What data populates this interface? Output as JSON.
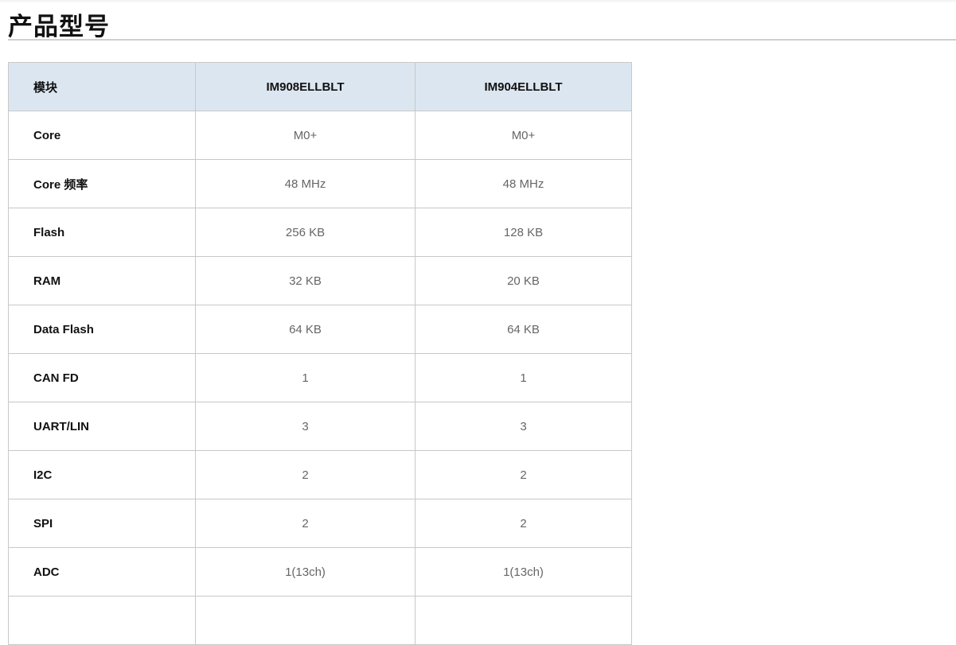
{
  "title": "产品型号",
  "table": {
    "headers": [
      "模块",
      "IM908ELLBLT",
      "IM904ELLBLT"
    ],
    "rows": [
      [
        "Core",
        "M0+",
        "M0+"
      ],
      [
        "Core 频率",
        "48 MHz",
        "48 MHz"
      ],
      [
        "Flash",
        "256 KB",
        "128 KB"
      ],
      [
        "RAM",
        "32 KB",
        "20 KB"
      ],
      [
        "Data Flash",
        "64 KB",
        "64 KB"
      ],
      [
        "CAN FD",
        "1",
        "1"
      ],
      [
        "UART/LIN",
        "3",
        "3"
      ],
      [
        "I2C",
        "2",
        "2"
      ],
      [
        "SPI",
        "2",
        "2"
      ],
      [
        "ADC",
        "1(13ch)",
        "1(13ch)"
      ]
    ]
  }
}
